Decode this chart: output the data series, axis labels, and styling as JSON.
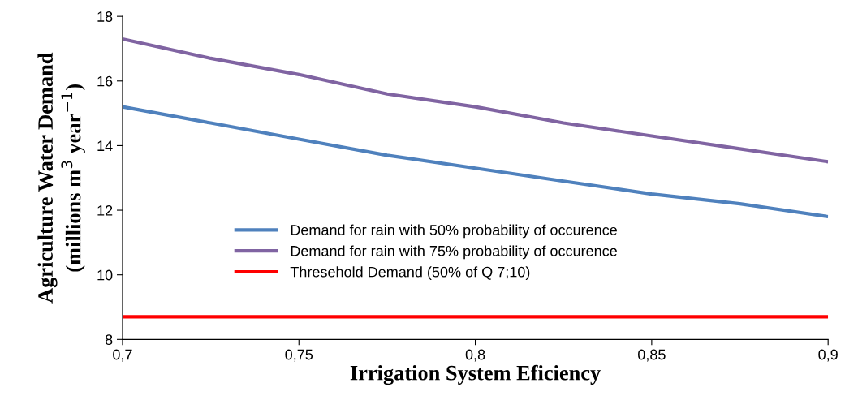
{
  "chart_data": {
    "type": "line",
    "xlabel": "Irrigation System Eficiency",
    "ylabel": "Agriculture Water Demand\n(millions m$^{3}$ year$^{−1}$)",
    "x": [
      0.7,
      0.725,
      0.75,
      0.775,
      0.8,
      0.825,
      0.85,
      0.875,
      0.9
    ],
    "series": [
      {
        "name": "Demand for rain with 50% probability of occurence",
        "color": "#4f81bd",
        "values": [
          15.2,
          14.7,
          14.2,
          13.7,
          13.3,
          12.9,
          12.5,
          12.2,
          11.8
        ]
      },
      {
        "name": "Demand for rain with 75% probability of occurence",
        "color": "#8064a2",
        "values": [
          17.3,
          16.7,
          16.2,
          15.6,
          15.2,
          14.7,
          14.3,
          13.9,
          13.5
        ]
      },
      {
        "name": "Thresehold Demand (50% of Q 7;10)",
        "color": "#ff0000",
        "values": [
          8.7,
          8.7,
          8.7,
          8.7,
          8.7,
          8.7,
          8.7,
          8.7,
          8.7
        ]
      }
    ],
    "xlim": [
      0.7,
      0.9
    ],
    "xticks": [
      {
        "value": 0.7,
        "label": "0,7"
      },
      {
        "value": 0.75,
        "label": "0,75"
      },
      {
        "value": 0.8,
        "label": "0,8"
      },
      {
        "value": 0.85,
        "label": "0,85"
      },
      {
        "value": 0.9,
        "label": "0,9"
      }
    ],
    "ylim": [
      8,
      18
    ],
    "yticks": [
      8,
      10,
      12,
      14,
      16,
      18
    ],
    "grid": false,
    "legend": "center",
    "marker": "none",
    "line_style": "solid"
  }
}
